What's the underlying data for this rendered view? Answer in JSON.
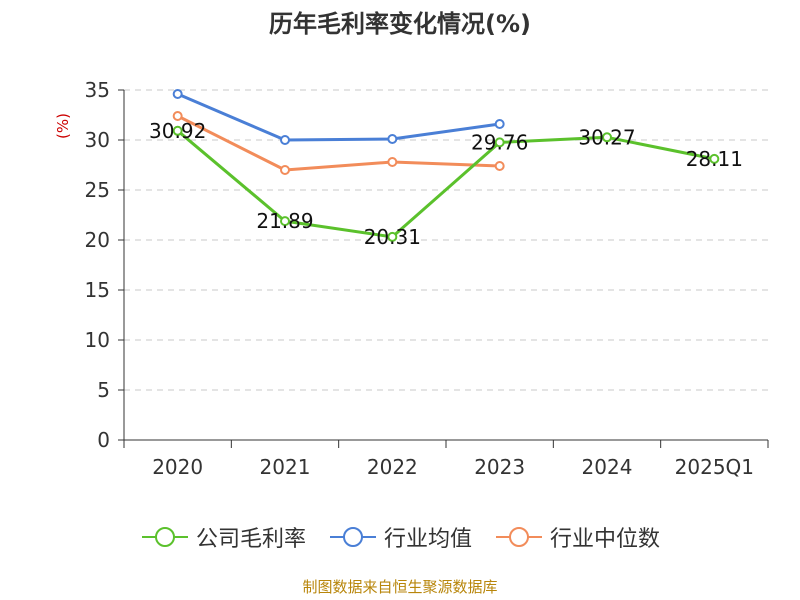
{
  "chart_data": {
    "type": "line",
    "title": "历年毛利率变化情况(%)",
    "ylabel": "(%)",
    "xlabel": "",
    "categories": [
      "2020",
      "2021",
      "2022",
      "2023",
      "2024",
      "2025Q1"
    ],
    "ylim": [
      0,
      35
    ],
    "yticks": [
      0,
      5,
      10,
      15,
      20,
      25,
      30,
      35
    ],
    "grid": true,
    "legend_position": "bottom",
    "series": [
      {
        "name": "公司毛利率",
        "color": "#5bc12c",
        "values": [
          30.92,
          21.89,
          20.31,
          29.76,
          30.27,
          28.11
        ],
        "labels": [
          "30.92",
          "21.89",
          "20.31",
          "29.76",
          "30.27",
          "28.11"
        ]
      },
      {
        "name": "行业均值",
        "color": "#4a7fd6",
        "values": [
          34.6,
          30.0,
          30.1,
          31.6,
          null,
          null
        ]
      },
      {
        "name": "行业中位数",
        "color": "#f28c5a",
        "values": [
          32.4,
          27.0,
          27.8,
          27.4,
          null,
          null
        ]
      }
    ]
  },
  "source": "制图数据来自恒生聚源数据库"
}
